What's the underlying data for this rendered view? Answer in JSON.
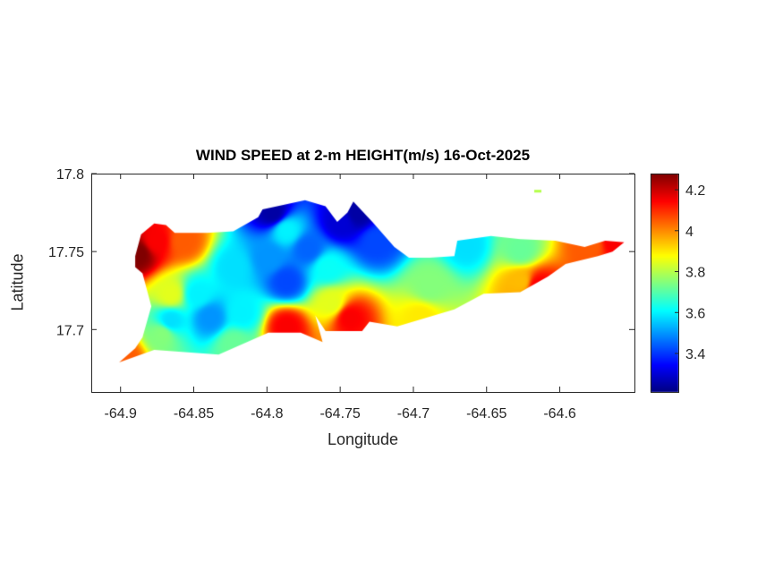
{
  "chart_data": {
    "type": "heatmap",
    "title": "WIND SPEED at 2-m HEIGHT(m/s) 16-Oct-2025",
    "xlabel": "Longitude",
    "ylabel": "Latitude",
    "xlim": [
      -64.92,
      -64.549
    ],
    "ylim": [
      17.66,
      17.8
    ],
    "xticks": [
      -64.9,
      -64.85,
      -64.8,
      -64.75,
      -64.7,
      -64.65,
      -64.6
    ],
    "xtick_labels": [
      "-64.9",
      "-64.85",
      "-64.8",
      "-64.75",
      "-64.7",
      "-64.65",
      "-64.6"
    ],
    "yticks": [
      17.7,
      17.75,
      17.8
    ],
    "ytick_labels": [
      "17.7",
      "17.75",
      "17.8"
    ],
    "colormap": "jet",
    "clim": [
      3.212,
      4.279
    ],
    "colorbar_ticks": [
      3.4,
      3.6,
      3.8,
      4.0,
      4.2
    ],
    "colorbar_tick_labels": [
      "3.4",
      "3.6",
      "3.8",
      "4",
      "4.2"
    ],
    "grid": false,
    "outline_lonlat": [
      [
        -64.901,
        17.679
      ],
      [
        -64.89,
        17.688
      ],
      [
        -64.885,
        17.695
      ],
      [
        -64.879,
        17.715
      ],
      [
        -64.885,
        17.736
      ],
      [
        -64.89,
        17.74
      ],
      [
        -64.89,
        17.747
      ],
      [
        -64.886,
        17.761
      ],
      [
        -64.877,
        17.768
      ],
      [
        -64.869,
        17.767
      ],
      [
        -64.863,
        17.762
      ],
      [
        -64.841,
        17.762
      ],
      [
        -64.823,
        17.763
      ],
      [
        -64.806,
        17.772
      ],
      [
        -64.803,
        17.777
      ],
      [
        -64.774,
        17.783
      ],
      [
        -64.76,
        17.779
      ],
      [
        -64.752,
        17.769
      ],
      [
        -64.745,
        17.775
      ],
      [
        -64.741,
        17.782
      ],
      [
        -64.728,
        17.769
      ],
      [
        -64.713,
        17.753
      ],
      [
        -64.703,
        17.746
      ],
      [
        -64.689,
        17.746
      ],
      [
        -64.672,
        17.747
      ],
      [
        -64.67,
        17.757
      ],
      [
        -64.647,
        17.76
      ],
      [
        -64.627,
        17.758
      ],
      [
        -64.603,
        17.757
      ],
      [
        -64.583,
        17.753
      ],
      [
        -64.569,
        17.757
      ],
      [
        -64.556,
        17.756
      ],
      [
        -64.564,
        17.75
      ],
      [
        -64.574,
        17.747
      ],
      [
        -64.596,
        17.742
      ],
      [
        -64.608,
        17.734
      ],
      [
        -64.627,
        17.724
      ],
      [
        -64.652,
        17.723
      ],
      [
        -64.672,
        17.713
      ],
      [
        -64.711,
        17.702
      ],
      [
        -64.73,
        17.705
      ],
      [
        -64.735,
        17.699
      ],
      [
        -64.76,
        17.699
      ],
      [
        -64.767,
        17.709
      ],
      [
        -64.762,
        17.692
      ],
      [
        -64.777,
        17.698
      ],
      [
        -64.799,
        17.698
      ],
      [
        -64.833,
        17.684
      ],
      [
        -64.877,
        17.687
      ]
    ],
    "points": [
      [
        -64.888,
        17.749,
        4.28
      ],
      [
        -64.876,
        17.757,
        4.15
      ],
      [
        -64.857,
        17.757,
        4.05
      ],
      [
        -64.866,
        17.723,
        3.85
      ],
      [
        -64.848,
        17.723,
        3.6
      ],
      [
        -64.866,
        17.706,
        3.58
      ],
      [
        -64.839,
        17.708,
        3.5
      ],
      [
        -64.823,
        17.74,
        3.58
      ],
      [
        -64.787,
        17.731,
        3.42
      ],
      [
        -64.796,
        17.775,
        3.25
      ],
      [
        -64.787,
        17.764,
        3.6
      ],
      [
        -64.75,
        17.769,
        3.3
      ],
      [
        -64.738,
        17.775,
        3.25
      ],
      [
        -64.759,
        17.74,
        3.62
      ],
      [
        -64.787,
        17.702,
        4.15
      ],
      [
        -64.744,
        17.708,
        4.15
      ],
      [
        -64.756,
        17.717,
        3.85
      ],
      [
        -64.725,
        17.757,
        3.42
      ],
      [
        -64.664,
        17.754,
        3.58
      ],
      [
        -64.689,
        17.728,
        3.75
      ],
      [
        -64.695,
        17.708,
        3.9
      ],
      [
        -64.627,
        17.751,
        3.72
      ],
      [
        -64.627,
        17.731,
        3.95
      ],
      [
        -64.615,
        17.728,
        4.15
      ],
      [
        -64.579,
        17.754,
        4.05
      ],
      [
        -64.563,
        17.756,
        4.15
      ],
      [
        -64.823,
        17.691,
        3.72
      ],
      [
        -64.897,
        17.682,
        4.05
      ],
      [
        -64.872,
        17.697,
        3.75
      ],
      [
        -64.817,
        17.711,
        3.6
      ],
      [
        -64.799,
        17.746,
        3.5
      ],
      [
        -64.772,
        17.752,
        3.45
      ],
      [
        -64.615,
        17.789,
        3.8
      ]
    ]
  }
}
